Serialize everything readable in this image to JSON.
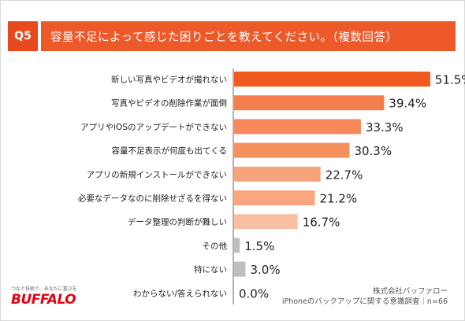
{
  "header": {
    "q_label": "Q5",
    "question": "容量不足によって感じた困りごとを教えてください。（複数回答）"
  },
  "chart_data": {
    "type": "bar",
    "orientation": "horizontal",
    "categories": [
      "新しい写真やビデオが撮れない",
      "写真やビデオの削除作業が面倒",
      "アプリやiOSのアップデートができない",
      "容量不足表示が何度も出てくる",
      "アプリの新規インストールができない",
      "必要なデータなのに削除せざるを得ない",
      "データ整理の判断が難しい",
      "その他",
      "特にない",
      "わからない/答えられない"
    ],
    "values": [
      51.5,
      39.4,
      33.3,
      30.3,
      22.7,
      21.2,
      16.7,
      1.5,
      3.0,
      0.0
    ],
    "value_labels": [
      "51.5%",
      "39.4%",
      "33.3%",
      "30.3%",
      "22.7%",
      "21.2%",
      "16.7%",
      "1.5%",
      "3.0%",
      "0.0%"
    ],
    "xlim": [
      0,
      60
    ],
    "grid": false,
    "bar_colors": [
      "#f05a1c",
      "#f47e4e",
      "#f5895c",
      "#f5905f",
      "#f7a37c",
      "#f7a67f",
      "#f9bfa3",
      "#bfbfbf",
      "#bfbfbf",
      "#bfbfbf"
    ]
  },
  "source": {
    "line1": "株式会社バッファロー",
    "line2": "iPhoneのバックアップに関する意識調査｜n=66"
  },
  "logo": {
    "tagline": "つなぐ技術で、あなたに喜びを",
    "wordmark": "BUFFALO"
  }
}
